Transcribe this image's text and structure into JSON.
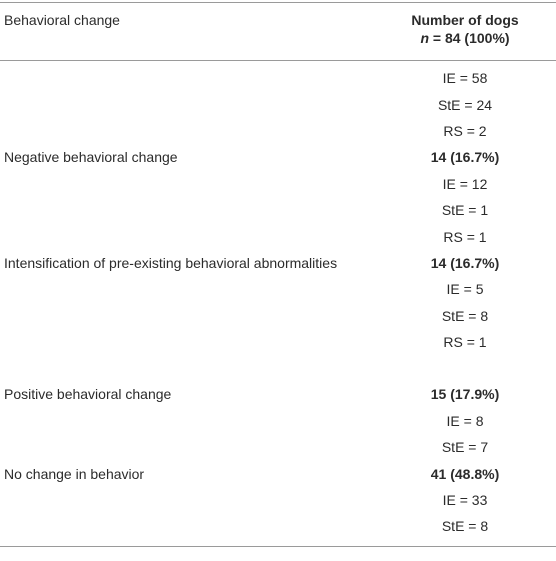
{
  "header": {
    "label": "Behavioral change",
    "number_title": "Number of dogs",
    "number_n": "n",
    "number_total": "= 84 (100%)"
  },
  "rows": [
    {
      "value": "IE = 58"
    },
    {
      "value": "StE = 24"
    },
    {
      "value": "RS = 2"
    },
    {
      "label": "Negative behavioral change",
      "value": "14 (16.7%)"
    },
    {
      "value": "IE = 12"
    },
    {
      "value": "StE = 1"
    },
    {
      "value": "RS = 1"
    },
    {
      "label": "Intensification of pre-existing behavioral abnormalities",
      "value": "14 (16.7%)"
    },
    {
      "value": "IE = 5"
    },
    {
      "value": "StE = 8"
    },
    {
      "value": "RS = 1"
    },
    {
      "label": "Positive behavioral change",
      "value": "15 (17.9%)"
    },
    {
      "value": "IE = 8"
    },
    {
      "value": "StE = 7"
    },
    {
      "label": "No change in behavior",
      "value": "41 (48.8%)"
    },
    {
      "value": "IE = 33"
    },
    {
      "value": "StE = 8"
    }
  ]
}
